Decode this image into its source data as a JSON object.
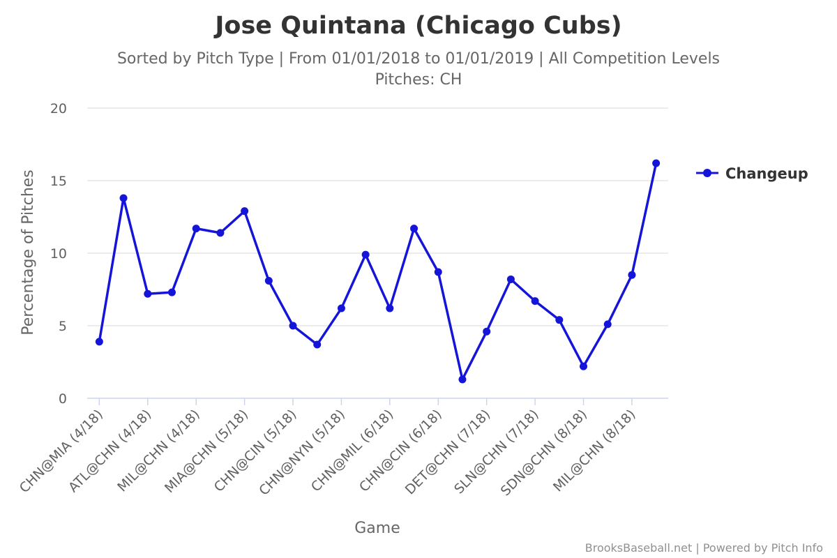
{
  "chart_data": {
    "type": "line",
    "title": "Jose Quintana (Chicago Cubs)",
    "subtitle_lines": [
      "Sorted by Pitch Type | From 01/01/2018 to 01/01/2019 | All Competition Levels",
      "Pitches: CH"
    ],
    "xlabel": "Game",
    "ylabel": "Percentage of Pitches",
    "ylim": [
      0,
      20
    ],
    "yticks": [
      0,
      5,
      10,
      15,
      20
    ],
    "grid": true,
    "legend_position": "right",
    "tick_labels": [
      "CHN@MIA (4/18)",
      "ATL@CHN (4/18)",
      "MIL@CHN (4/18)",
      "MIA@CHN (5/18)",
      "CHN@CIN (5/18)",
      "CHN@NYN (5/18)",
      "CHN@MIL (6/18)",
      "CHN@CIN (6/18)",
      "DET@CHN (7/18)",
      "SLN@CHN (7/18)",
      "SDN@CHN (8/18)",
      "MIL@CHN (8/18)"
    ],
    "series": [
      {
        "name": "Changeup",
        "color": "#1515d9",
        "values": [
          3.9,
          13.8,
          7.2,
          7.3,
          11.7,
          11.4,
          12.9,
          8.1,
          5.0,
          3.7,
          6.2,
          9.9,
          6.2,
          11.7,
          8.7,
          1.3,
          4.6,
          8.2,
          6.7,
          5.4,
          2.2,
          5.1,
          8.5,
          16.2
        ]
      }
    ]
  },
  "credits": "BrooksBaseball.net | Powered by Pitch Info"
}
